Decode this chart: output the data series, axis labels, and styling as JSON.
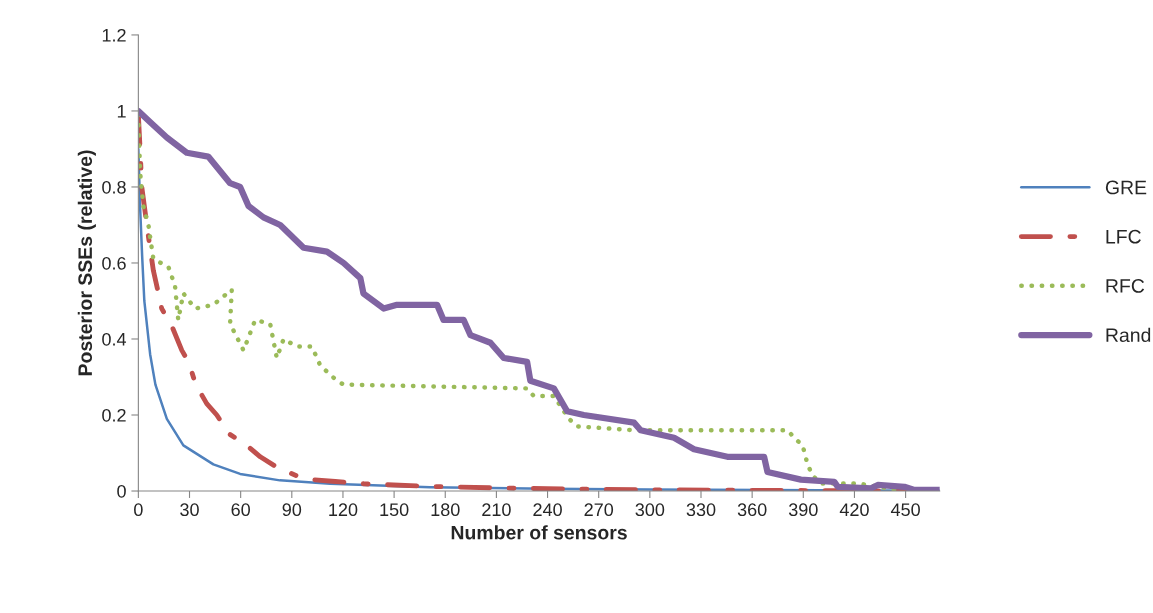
{
  "chart_data": {
    "type": "line",
    "xlabel": "Number of sensors",
    "ylabel": "Posterior SSEs (relative)",
    "xlim": [
      0,
      470
    ],
    "xticks": [
      0,
      30,
      60,
      90,
      120,
      150,
      180,
      210,
      240,
      270,
      300,
      330,
      360,
      390,
      420,
      450
    ],
    "ylim": [
      0,
      1.2
    ],
    "yticks": [
      0,
      {
        "value": 0.2,
        "label": "0.2"
      },
      {
        "value": 0.4,
        "label": "0.4"
      },
      {
        "value": 0.6,
        "label": "0.6"
      },
      {
        "value": 0.8,
        "label": "0.8"
      },
      1,
      {
        "value": 1.2,
        "label": "1.2"
      }
    ],
    "grid": false,
    "legend": "right",
    "marker": "none",
    "series": [
      {
        "name": "GRE",
        "color": "#4f81bd",
        "line_style": "solid",
        "x": [
          0,
          1,
          2.2,
          3.5,
          6.9,
          10,
          16.7,
          26.4,
          44,
          59.7,
          83,
          112.5,
          171,
          240,
          300,
          400,
          470
        ],
        "values": [
          0.9,
          0.75,
          0.62,
          0.5,
          0.36,
          0.28,
          0.19,
          0.12,
          0.07,
          0.045,
          0.028,
          0.019,
          0.01,
          0.006,
          0.004,
          0.002,
          0.001
        ]
      },
      {
        "name": "LFC",
        "color": "#c0504d",
        "line_style": "dashed",
        "x": [
          0,
          1,
          2,
          5.9,
          8.8,
          11.8,
          13.7,
          20,
          25.5,
          29.4,
          33.7,
          40.1,
          46,
          53.3,
          63.6,
          71.5,
          82.2,
          93,
          101.9,
          115.5,
          132.2,
          171.3,
          210.5,
          239.8,
          300,
          400,
          450
        ],
        "values": [
          0.99,
          0.9,
          0.8,
          0.67,
          0.58,
          0.52,
          0.48,
          0.43,
          0.37,
          0.34,
          0.28,
          0.23,
          0.2,
          0.15,
          0.12,
          0.09,
          0.06,
          0.04,
          0.03,
          0.025,
          0.019,
          0.012,
          0.008,
          0.006,
          0.003,
          0.001,
          0
        ]
      },
      {
        "name": "RFC",
        "color": "#9bbb59",
        "line_style": "dotted",
        "x": [
          0,
          1,
          2.9,
          5.9,
          8.8,
          17.6,
          21.5,
          23.4,
          26.4,
          33.3,
          44,
          54.8,
          53.8,
          61.7,
          68.5,
          77.3,
          81.2,
          85.2,
          93,
          101.8,
          106.7,
          116.5,
          120.4,
          228,
          231.9,
          243.7,
          252.5,
          257.4,
          290.7,
          380.8,
          384.7,
          389.6,
          392.5,
          395.5,
          400.4,
          422,
          435.7,
          447.4
        ],
        "values": [
          0.99,
          0.84,
          0.75,
          0.7,
          0.61,
          0.59,
          0.54,
          0.45,
          0.52,
          0.48,
          0.49,
          0.53,
          0.44,
          0.37,
          0.45,
          0.44,
          0.35,
          0.4,
          0.38,
          0.38,
          0.33,
          0.29,
          0.28,
          0.27,
          0.25,
          0.25,
          0.19,
          0.17,
          0.16,
          0.16,
          0.14,
          0.12,
          0.07,
          0.04,
          0.02,
          0.02,
          0.01,
          0
        ]
      },
      {
        "name": "Rand",
        "color": "#8064a2",
        "line_style": "solid",
        "x": [
          0,
          7,
          16.7,
          28.4,
          41,
          53.8,
          59.7,
          64.6,
          73.4,
          83.2,
          96.9,
          110.6,
          120.4,
          130.2,
          132,
          143.9,
          151.7,
          175.2,
          179,
          190.8,
          194.8,
          206.5,
          214.3,
          228,
          229.9,
          243.7,
          251.5,
          261.3,
          290.7,
          294.6,
          314.2,
          325.9,
          345.5,
          367,
          369,
          388.6,
          408.2,
          410.2,
          429.8,
          433.7,
          449.3,
          455.2,
          470
        ],
        "values": [
          1,
          0.97,
          0.93,
          0.89,
          0.88,
          0.81,
          0.8,
          0.75,
          0.72,
          0.7,
          0.64,
          0.63,
          0.6,
          0.56,
          0.52,
          0.48,
          0.49,
          0.49,
          0.45,
          0.45,
          0.41,
          0.39,
          0.35,
          0.34,
          0.29,
          0.27,
          0.21,
          0.2,
          0.18,
          0.16,
          0.14,
          0.11,
          0.09,
          0.09,
          0.05,
          0.03,
          0.024,
          0.011,
          0.007,
          0.016,
          0.011,
          0.003,
          0.003
        ]
      }
    ]
  }
}
